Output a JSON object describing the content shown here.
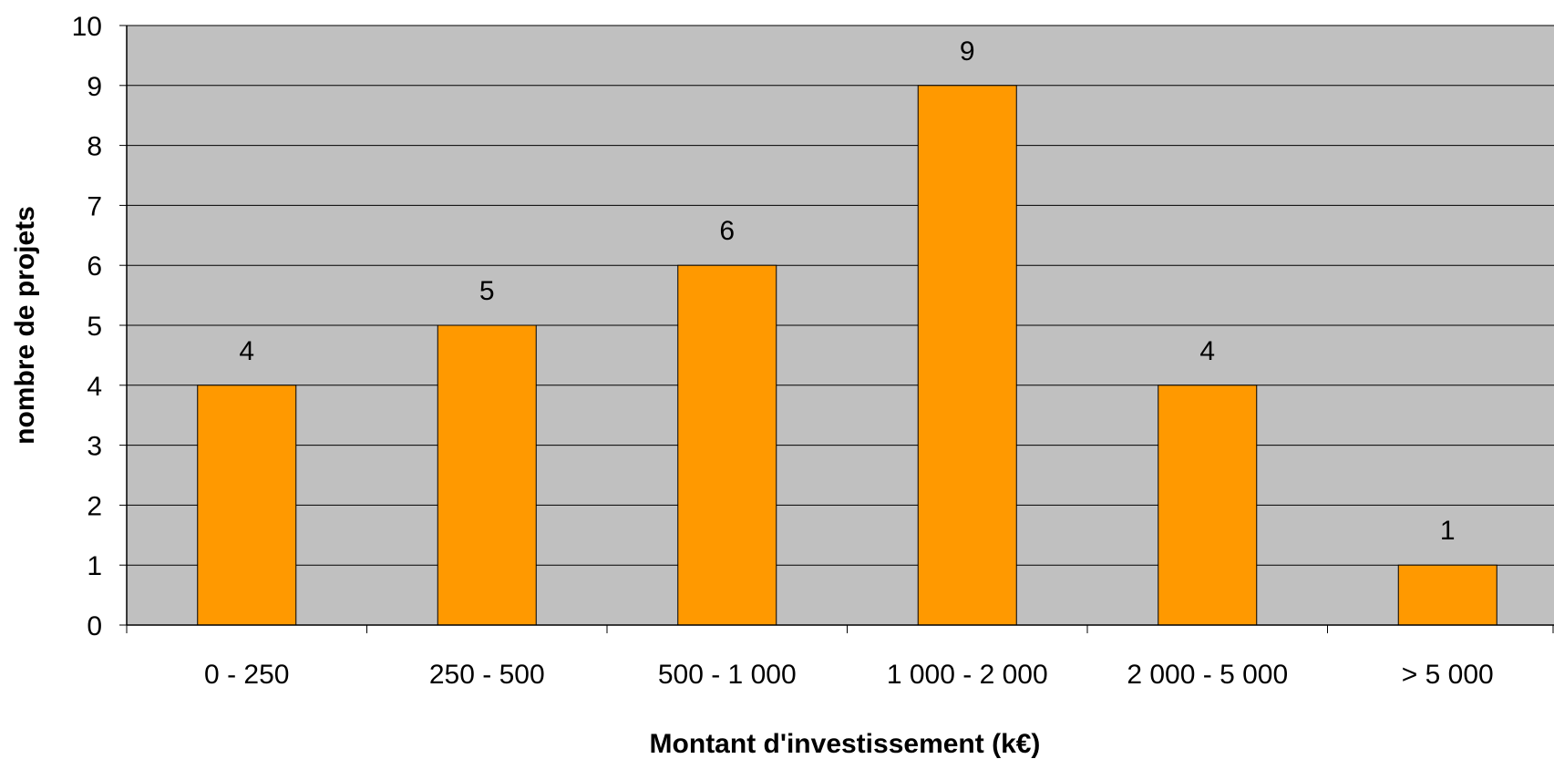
{
  "chart_data": {
    "type": "bar",
    "title": "",
    "xlabel": "Montant d'investissement (k€)",
    "ylabel": "nombre de projets",
    "categories": [
      "0 - 250",
      "250 - 500",
      "500 - 1 000",
      "1 000 - 2 000",
      "2 000 - 5 000",
      "> 5 000"
    ],
    "values": [
      4,
      5,
      6,
      9,
      4,
      1
    ],
    "data_labels": [
      "4",
      "5",
      "6",
      "9",
      "4",
      "1"
    ],
    "ylim": [
      0,
      10
    ],
    "yticks": [
      0,
      1,
      2,
      3,
      4,
      5,
      6,
      7,
      8,
      9,
      10
    ],
    "grid": true,
    "legend": "none",
    "colors": {
      "bar_fill": "#FF9900",
      "bar_stroke": "#000000",
      "plot_background": "#C0C0C0",
      "gridline": "#000000"
    }
  }
}
